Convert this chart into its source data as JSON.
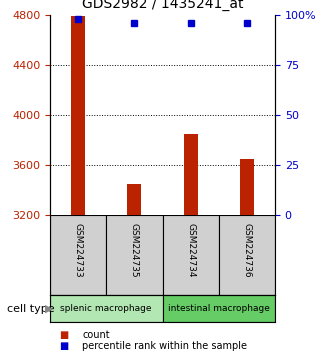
{
  "title": "GDS2982 / 1435241_at",
  "samples": [
    "GSM224733",
    "GSM224735",
    "GSM224734",
    "GSM224736"
  ],
  "bar_values": [
    4790,
    3450,
    3850,
    3650
  ],
  "percentile_values": [
    98,
    96,
    96,
    96
  ],
  "y_min": 3200,
  "y_max": 4800,
  "y_ticks": [
    3200,
    3600,
    4000,
    4400,
    4800
  ],
  "y2_ticks": [
    0,
    25,
    50,
    75,
    100
  ],
  "bar_color": "#bb2200",
  "dot_color": "#0000cc",
  "group1_label": "splenic macrophage",
  "group2_label": "intestinal macrophage",
  "group1_color": "#b2e6b2",
  "group2_color": "#66cc66",
  "group1_indices": [
    0,
    1
  ],
  "group2_indices": [
    2,
    3
  ],
  "cell_type_label": "cell type",
  "legend_count_label": "count",
  "legend_pct_label": "percentile rank within the sample",
  "bar_bottom": 3200,
  "bar_width": 0.25
}
